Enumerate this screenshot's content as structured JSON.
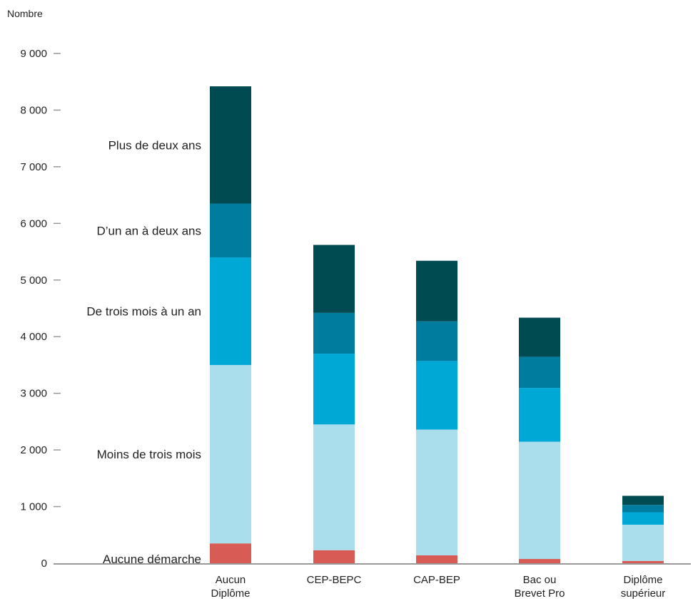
{
  "chart_data": {
    "type": "bar",
    "stacked": true,
    "unit_label": "Nombre",
    "y_tick_labels": [
      "0",
      "1 000",
      "2 000",
      "3 000",
      "4 000",
      "5 000",
      "6 000",
      "7 000",
      "8 000",
      "9 000"
    ],
    "ylim": [
      0,
      9000
    ],
    "grid": false,
    "categories": [
      [
        "Aucun",
        "Diplôme"
      ],
      [
        "CEP-BEPC"
      ],
      [
        "CAP-BEP"
      ],
      [
        "Bac ou",
        "Brevet Pro"
      ],
      [
        "Diplôme",
        "supérieur"
      ]
    ],
    "series": [
      {
        "name": "Aucune démarche",
        "color": "#d95b55",
        "values": [
          350,
          230,
          140,
          75,
          40
        ]
      },
      {
        "name": "Moins de trois mois",
        "color": "#abdeec",
        "values": [
          3150,
          2220,
          2220,
          2070,
          640
        ]
      },
      {
        "name": "De trois mois à un an",
        "color": "#00a8d6",
        "values": [
          1900,
          1250,
          1210,
          950,
          220
        ]
      },
      {
        "name": "D’un an à deux ans",
        "color": "#007c9e",
        "values": [
          950,
          720,
          700,
          550,
          130
        ]
      },
      {
        "name": "Plus de deux ans",
        "color": "#004a52",
        "values": [
          2070,
          1200,
          1070,
          690,
          160
        ]
      }
    ]
  }
}
